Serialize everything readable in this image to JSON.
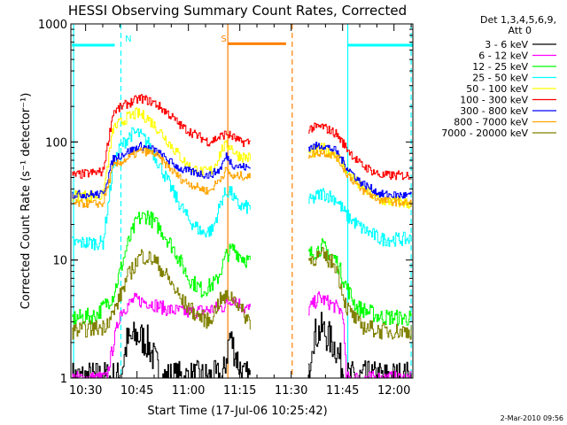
{
  "chart_data": {
    "type": "line",
    "title": "HESSI Observing Summary Count Rates, Corrected",
    "xlabel": "Start Time (17-Jul-06 10:25:42)",
    "ylabel": "Corrected Count Rate (s⁻¹ detector⁻¹)",
    "xaxis_unit": "minutes since 10:00",
    "xlim": [
      25.7,
      125.5
    ],
    "ylim": [
      1,
      1000
    ],
    "yscale": "log",
    "xticks": [
      {
        "value": 30,
        "label": "10:30"
      },
      {
        "value": 45,
        "label": "10:45"
      },
      {
        "value": 60,
        "label": "11:00"
      },
      {
        "value": 75,
        "label": "11:15"
      },
      {
        "value": 90,
        "label": "11:30"
      },
      {
        "value": 105,
        "label": "11:45"
      },
      {
        "value": 120,
        "label": "12:00"
      }
    ],
    "yticks": [
      {
        "value": 1,
        "label": "1"
      },
      {
        "value": 10,
        "label": "10"
      },
      {
        "value": 100,
        "label": "100"
      },
      {
        "value": 1000,
        "label": "1000"
      }
    ],
    "legend_header": [
      "Det 1,3,4,5,6,9,",
      "Att 0"
    ],
    "gaps": [
      [
        78,
        95
      ]
    ],
    "series": [
      {
        "name": "3 - 6 keV",
        "color": "#000000",
        "jitter": 0.15,
        "points": [
          [
            26,
            1.0
          ],
          [
            40,
            1.0
          ],
          [
            42,
            2.0
          ],
          [
            45,
            2.3
          ],
          [
            48,
            2.0
          ],
          [
            52,
            1.0
          ],
          [
            70,
            1.0
          ],
          [
            72,
            2.3
          ],
          [
            74,
            1.5
          ],
          [
            76,
            1.0
          ],
          [
            78,
            1.0
          ],
          [
            95,
            1.0
          ],
          [
            96,
            2.2
          ],
          [
            99,
            2.6
          ],
          [
            103,
            1.8
          ],
          [
            106,
            1.0
          ],
          [
            125,
            1.0
          ]
        ]
      },
      {
        "name": "6 - 12 keV",
        "color": "#ff00ff",
        "jitter": 0.06,
        "points": [
          [
            26,
            1.0
          ],
          [
            36,
            1.0
          ],
          [
            40,
            3.6
          ],
          [
            44,
            4.6
          ],
          [
            48,
            4.4
          ],
          [
            54,
            3.8
          ],
          [
            60,
            3.6
          ],
          [
            66,
            3.8
          ],
          [
            70,
            4.0
          ],
          [
            73,
            4.8
          ],
          [
            76,
            3.9
          ],
          [
            78,
            3.8
          ],
          [
            95,
            3.8
          ],
          [
            98,
            4.8
          ],
          [
            100,
            4.5
          ],
          [
            103,
            4.0
          ],
          [
            105,
            3.6
          ],
          [
            106,
            1.0
          ],
          [
            125,
            1.0
          ]
        ]
      },
      {
        "name": "12 - 25 keV",
        "color": "#00ff00",
        "jitter": 0.07,
        "points": [
          [
            26,
            3.2
          ],
          [
            33,
            3.4
          ],
          [
            38,
            5.0
          ],
          [
            42,
            13
          ],
          [
            45,
            22
          ],
          [
            48,
            24
          ],
          [
            52,
            18
          ],
          [
            56,
            12
          ],
          [
            60,
            7
          ],
          [
            64,
            5.5
          ],
          [
            68,
            6.5
          ],
          [
            71,
            11
          ],
          [
            73,
            12.5
          ],
          [
            75,
            11
          ],
          [
            78,
            9.5
          ],
          [
            95,
            11
          ],
          [
            99,
            13
          ],
          [
            103,
            10
          ],
          [
            106,
            6
          ],
          [
            109,
            4
          ],
          [
            116,
            3.3
          ],
          [
            125,
            3.2
          ]
        ]
      },
      {
        "name": "25 - 50 keV",
        "color": "#00ffff",
        "jitter": 0.06,
        "points": [
          [
            26,
            14
          ],
          [
            35,
            14
          ],
          [
            38,
            62
          ],
          [
            40,
            90
          ],
          [
            43,
            115
          ],
          [
            45,
            120
          ],
          [
            48,
            100
          ],
          [
            52,
            60
          ],
          [
            56,
            35
          ],
          [
            60,
            22
          ],
          [
            64,
            17
          ],
          [
            67,
            18
          ],
          [
            70,
            35
          ],
          [
            72,
            39
          ],
          [
            74,
            30
          ],
          [
            76,
            28
          ],
          [
            78,
            28
          ],
          [
            95,
            31
          ],
          [
            99,
            37
          ],
          [
            103,
            33
          ],
          [
            106,
            24
          ],
          [
            110,
            19
          ],
          [
            116,
            15
          ],
          [
            125,
            15
          ]
        ]
      },
      {
        "name": "50 - 100 keV",
        "color": "#ffff00",
        "jitter": 0.05,
        "points": [
          [
            26,
            35
          ],
          [
            35,
            35
          ],
          [
            38,
            130
          ],
          [
            42,
            160
          ],
          [
            45,
            175
          ],
          [
            48,
            160
          ],
          [
            52,
            120
          ],
          [
            56,
            85
          ],
          [
            60,
            62
          ],
          [
            64,
            55
          ],
          [
            67,
            58
          ],
          [
            70,
            90
          ],
          [
            72,
            94
          ],
          [
            74,
            78
          ],
          [
            76,
            75
          ],
          [
            78,
            73
          ],
          [
            95,
            80
          ],
          [
            99,
            88
          ],
          [
            103,
            80
          ],
          [
            106,
            58
          ],
          [
            110,
            42
          ],
          [
            116,
            32
          ],
          [
            125,
            30
          ]
        ]
      },
      {
        "name": "100 - 300 keV",
        "color": "#ff0000",
        "jitter": 0.04,
        "points": [
          [
            26,
            52
          ],
          [
            35,
            56
          ],
          [
            38,
            180
          ],
          [
            42,
            210
          ],
          [
            46,
            235
          ],
          [
            50,
            215
          ],
          [
            54,
            175
          ],
          [
            58,
            135
          ],
          [
            62,
            115
          ],
          [
            66,
            100
          ],
          [
            69,
            110
          ],
          [
            71,
            118
          ],
          [
            73,
            110
          ],
          [
            75,
            100
          ],
          [
            78,
            100
          ],
          [
            95,
            130
          ],
          [
            99,
            135
          ],
          [
            103,
            118
          ],
          [
            106,
            90
          ],
          [
            110,
            65
          ],
          [
            116,
            52
          ],
          [
            125,
            52
          ]
        ]
      },
      {
        "name": "300 - 800 keV",
        "color": "#0000ff",
        "jitter": 0.035,
        "points": [
          [
            26,
            36
          ],
          [
            35,
            36
          ],
          [
            38,
            72
          ],
          [
            42,
            82
          ],
          [
            46,
            92
          ],
          [
            50,
            86
          ],
          [
            54,
            70
          ],
          [
            58,
            58
          ],
          [
            62,
            55
          ],
          [
            66,
            52
          ],
          [
            69,
            58
          ],
          [
            71,
            76
          ],
          [
            73,
            64
          ],
          [
            75,
            62
          ],
          [
            78,
            60
          ],
          [
            95,
            90
          ],
          [
            99,
            94
          ],
          [
            103,
            84
          ],
          [
            106,
            62
          ],
          [
            110,
            46
          ],
          [
            116,
            36
          ],
          [
            125,
            35
          ]
        ]
      },
      {
        "name": "800 - 7000 keV",
        "color": "#ffa500",
        "jitter": 0.035,
        "points": [
          [
            26,
            30
          ],
          [
            35,
            30
          ],
          [
            38,
            62
          ],
          [
            42,
            72
          ],
          [
            46,
            84
          ],
          [
            50,
            80
          ],
          [
            54,
            62
          ],
          [
            58,
            48
          ],
          [
            62,
            42
          ],
          [
            66,
            38
          ],
          [
            69,
            48
          ],
          [
            71,
            58
          ],
          [
            73,
            50
          ],
          [
            75,
            52
          ],
          [
            78,
            50
          ],
          [
            95,
            78
          ],
          [
            99,
            82
          ],
          [
            103,
            76
          ],
          [
            106,
            55
          ],
          [
            110,
            40
          ],
          [
            116,
            32
          ],
          [
            125,
            30
          ]
        ]
      },
      {
        "name": "7000 - 20000 keV",
        "color": "#808000",
        "jitter": 0.07,
        "points": [
          [
            26,
            2.5
          ],
          [
            35,
            2.7
          ],
          [
            38,
            3.5
          ],
          [
            42,
            7
          ],
          [
            46,
            11
          ],
          [
            50,
            10
          ],
          [
            54,
            7
          ],
          [
            58,
            4.5
          ],
          [
            62,
            3.5
          ],
          [
            66,
            3.0
          ],
          [
            69,
            4.5
          ],
          [
            72,
            5
          ],
          [
            74,
            4.5
          ],
          [
            76,
            3.5
          ],
          [
            78,
            3.0
          ],
          [
            95,
            10
          ],
          [
            99,
            11
          ],
          [
            103,
            9
          ],
          [
            106,
            4
          ],
          [
            110,
            2.8
          ],
          [
            116,
            2.5
          ],
          [
            125,
            2.5
          ]
        ]
      }
    ],
    "flags": [
      {
        "label": "",
        "color": "#00ffff",
        "lines": [
          {
            "x": 26.5,
            "dashed": false
          },
          {
            "x": 40.3,
            "dashed": true
          }
        ],
        "bar": {
          "x0": 26,
          "x1": 38.5,
          "y": 660
        }
      },
      {
        "label": "N",
        "color": "#00ffff",
        "lines": [],
        "bar": null,
        "label_x": 41.5
      },
      {
        "label": "S",
        "color": "#ff8000",
        "lines": [
          {
            "x": 71.5,
            "dashed": false
          },
          {
            "x": 90.3,
            "dashed": true
          }
        ],
        "bar": {
          "x0": 71.5,
          "x1": 88.5,
          "y": 680
        },
        "label_x": 69.5
      },
      {
        "label": "",
        "color": "#00ffff",
        "lines": [
          {
            "x": 106.5,
            "dashed": false
          },
          {
            "x": 125,
            "dashed": true
          }
        ],
        "bar": {
          "x0": 106.5,
          "x1": 125.5,
          "y": 660
        }
      }
    ]
  },
  "footer": {
    "timestamp": "2-Mar-2010 09:56"
  }
}
